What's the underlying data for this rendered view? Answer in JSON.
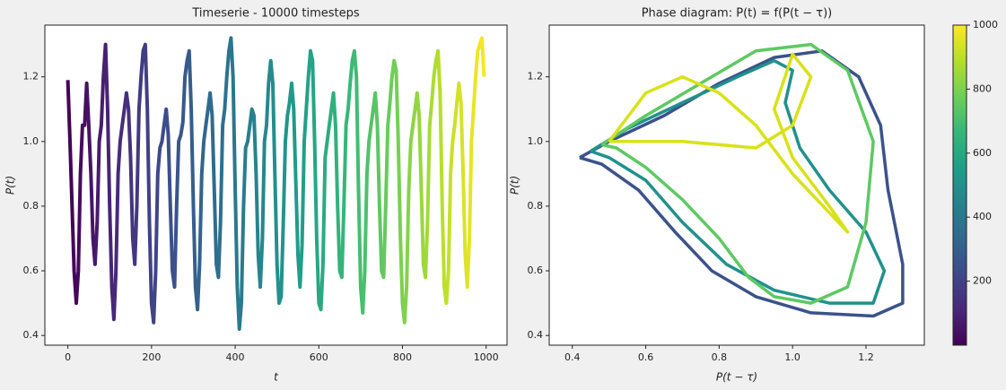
{
  "chart_data": [
    {
      "type": "line",
      "title": "Timeserie - 10000 timesteps",
      "xlabel": "t",
      "ylabel": "P(t)",
      "colormap": "viridis",
      "xlim": [
        -55,
        1050
      ],
      "ylim": [
        0.37,
        1.36
      ],
      "xticks": [
        0,
        200,
        400,
        600,
        800,
        1000
      ],
      "yticks": [
        0.4,
        0.6,
        0.8,
        {
          "value": 1,
          "label": "1.0"
        },
        1.2
      ],
      "x": [
        0,
        5,
        10,
        15,
        20,
        25,
        30,
        35,
        40,
        45,
        50,
        55,
        60,
        65,
        70,
        75,
        80,
        85,
        90,
        95,
        100,
        105,
        110,
        115,
        120,
        125,
        130,
        135,
        140,
        145,
        150,
        155,
        160,
        165,
        170,
        175,
        180,
        185,
        190,
        195,
        200,
        205,
        210,
        215,
        220,
        225,
        230,
        235,
        240,
        245,
        250,
        255,
        260,
        265,
        270,
        275,
        280,
        285,
        290,
        295,
        300,
        305,
        310,
        315,
        320,
        325,
        330,
        335,
        340,
        345,
        350,
        355,
        360,
        365,
        370,
        375,
        380,
        385,
        390,
        395,
        400,
        405,
        410,
        415,
        420,
        425,
        430,
        435,
        440,
        445,
        450,
        455,
        460,
        465,
        470,
        475,
        480,
        485,
        490,
        495,
        500,
        505,
        510,
        515,
        520,
        525,
        530,
        535,
        540,
        545,
        550,
        555,
        560,
        565,
        570,
        575,
        580,
        585,
        590,
        595,
        600,
        605,
        610,
        615,
        620,
        625,
        630,
        635,
        640,
        645,
        650,
        655,
        660,
        665,
        670,
        675,
        680,
        685,
        690,
        695,
        700,
        705,
        710,
        715,
        720,
        725,
        730,
        735,
        740,
        745,
        750,
        755,
        760,
        765,
        770,
        775,
        780,
        785,
        790,
        795,
        800,
        805,
        810,
        815,
        820,
        825,
        830,
        835,
        840,
        845,
        850,
        855,
        860,
        865,
        870,
        875,
        880,
        885,
        890,
        895,
        900,
        905,
        910,
        915,
        920,
        925,
        930,
        935,
        940,
        945,
        950,
        955,
        960,
        965,
        970,
        975,
        980,
        985,
        990,
        995
      ],
      "values": [
        1.19,
        1.0,
        0.8,
        0.6,
        0.5,
        0.6,
        0.9,
        1.05,
        1.05,
        1.18,
        1.05,
        0.9,
        0.7,
        0.62,
        0.75,
        1.0,
        1.05,
        1.2,
        1.3,
        1.1,
        0.8,
        0.55,
        0.45,
        0.6,
        0.9,
        1.0,
        1.05,
        1.1,
        1.15,
        1.1,
        0.95,
        0.7,
        0.62,
        0.8,
        1.1,
        1.2,
        1.28,
        1.3,
        1.1,
        0.75,
        0.5,
        0.44,
        0.6,
        0.9,
        0.98,
        1.0,
        1.05,
        1.1,
        1.02,
        0.8,
        0.6,
        0.55,
        0.8,
        1.0,
        1.02,
        1.06,
        1.2,
        1.25,
        1.28,
        1.1,
        0.8,
        0.55,
        0.48,
        0.62,
        0.9,
        1.0,
        1.05,
        1.1,
        1.15,
        1.08,
        0.85,
        0.62,
        0.58,
        0.75,
        1.05,
        1.1,
        1.2,
        1.28,
        1.32,
        1.2,
        0.85,
        0.55,
        0.42,
        0.5,
        0.8,
        0.98,
        1.0,
        1.05,
        1.1,
        1.08,
        0.9,
        0.65,
        0.55,
        0.7,
        1.0,
        1.05,
        1.18,
        1.25,
        1.18,
        0.9,
        0.62,
        0.5,
        0.52,
        0.75,
        1.0,
        1.08,
        1.12,
        1.18,
        1.1,
        0.88,
        0.65,
        0.55,
        0.68,
        1.0,
        1.1,
        1.2,
        1.28,
        1.25,
        1.0,
        0.7,
        0.5,
        0.48,
        0.62,
        0.95,
        1.0,
        1.05,
        1.1,
        1.15,
        1.05,
        0.8,
        0.6,
        0.58,
        0.8,
        1.05,
        1.1,
        1.18,
        1.25,
        1.28,
        1.2,
        0.85,
        0.55,
        0.47,
        0.6,
        0.9,
        1.0,
        1.05,
        1.1,
        1.15,
        1.05,
        0.8,
        0.6,
        0.58,
        0.8,
        1.05,
        1.12,
        1.2,
        1.25,
        1.22,
        1.0,
        0.7,
        0.5,
        0.44,
        0.55,
        0.85,
        1.0,
        1.05,
        1.1,
        1.15,
        1.08,
        0.85,
        0.62,
        0.58,
        0.75,
        1.05,
        1.12,
        1.2,
        1.25,
        1.28,
        1.15,
        0.8,
        0.55,
        0.5,
        0.6,
        0.9,
        1.0,
        1.05,
        1.12,
        1.18,
        1.12,
        0.9,
        0.65,
        0.55,
        0.7,
        1.0,
        1.1,
        1.2,
        1.28,
        1.3,
        1.32,
        1.2
      ]
    },
    {
      "type": "phase",
      "title": "Phase diagram: P(t) = f(P(t − τ))",
      "xlabel": "P(t − τ)",
      "ylabel": "P(t)",
      "xlim": [
        0.337,
        1.359
      ],
      "ylim": [
        0.37,
        1.36
      ],
      "xticks": [
        0.4,
        0.6,
        0.8,
        {
          "value": 1,
          "label": "1.0"
        },
        1.2
      ],
      "yticks": [
        0.4,
        0.6,
        0.8,
        {
          "value": 1,
          "label": "1.0"
        },
        1.2
      ],
      "colorbar": {
        "colormap": "viridis",
        "lim": [
          0,
          1000
        ],
        "ticks": [
          200,
          400,
          600,
          800,
          1000
        ]
      },
      "series": [
        {
          "color": "#3b528b",
          "x": [
            0.42,
            0.5,
            0.65,
            0.8,
            0.95,
            1.08,
            1.18,
            1.24,
            1.26,
            1.3,
            1.3,
            1.22,
            1.05,
            0.9,
            0.78,
            0.68,
            0.58,
            0.48,
            0.42
          ],
          "values": [
            0.95,
            1.0,
            1.08,
            1.18,
            1.26,
            1.28,
            1.2,
            1.05,
            0.85,
            0.62,
            0.5,
            0.46,
            0.47,
            0.52,
            0.6,
            0.72,
            0.85,
            0.93,
            0.95
          ]
        },
        {
          "color": "#21918c",
          "x": [
            0.45,
            0.55,
            0.7,
            0.85,
            0.95,
            1.0,
            0.98,
            1.02,
            1.1,
            1.2,
            1.25,
            1.22,
            1.1,
            0.95,
            0.82,
            0.7,
            0.6,
            0.5,
            0.45
          ],
          "values": [
            0.97,
            1.04,
            1.12,
            1.2,
            1.25,
            1.22,
            1.12,
            0.98,
            0.85,
            0.72,
            0.6,
            0.5,
            0.5,
            0.54,
            0.62,
            0.75,
            0.88,
            0.95,
            0.97
          ]
        },
        {
          "color": "#5ec962",
          "x": [
            0.48,
            0.6,
            0.75,
            0.9,
            1.05,
            1.15,
            1.22,
            1.2,
            1.15,
            1.05,
            0.95,
            0.88,
            0.8,
            0.7,
            0.6,
            0.52,
            0.48
          ],
          "values": [
            0.99,
            1.08,
            1.18,
            1.28,
            1.3,
            1.22,
            1.0,
            0.75,
            0.55,
            0.5,
            0.52,
            0.58,
            0.7,
            0.82,
            0.92,
            0.98,
            0.99
          ]
        },
        {
          "color": "#d8e219",
          "x": [
            0.5,
            0.7,
            0.9,
            1.0,
            1.05,
            1.0,
            0.95,
            1.0,
            1.1,
            1.15,
            1.1,
            1.0,
            0.9,
            0.8,
            0.7,
            0.6,
            0.5
          ],
          "values": [
            1.0,
            1.0,
            0.98,
            1.05,
            1.2,
            1.27,
            1.1,
            0.95,
            0.8,
            0.72,
            0.78,
            0.9,
            1.05,
            1.15,
            1.2,
            1.15,
            1.0
          ]
        }
      ]
    }
  ]
}
